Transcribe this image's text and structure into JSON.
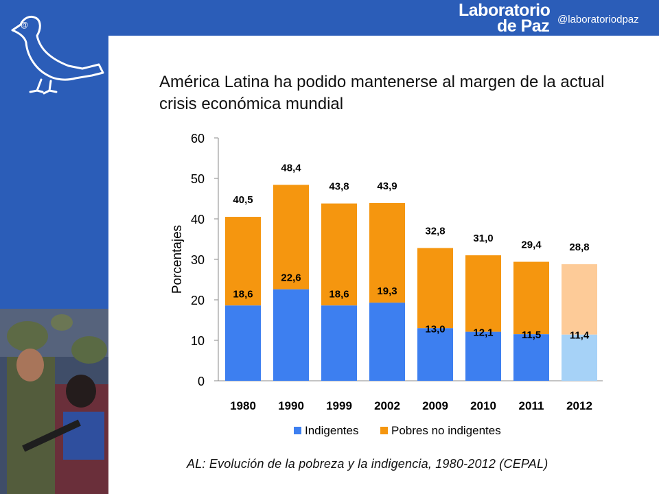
{
  "brand": {
    "line1": "Laboratorio",
    "line2": "de Paz",
    "handle": "@laboratoriodpaz"
  },
  "title": "América Latina ha podido mantenerse al margen de la actual crisis económica mundial",
  "caption": "AL: Evolución de la pobreza y la indigencia, 1980-2012 (CEPAL)",
  "colors": {
    "background": "#2b5db8",
    "indigentes": "#3d7ff0",
    "pobres": "#f5960f",
    "indigentes_light": "#a6d2f7",
    "pobres_light": "#fdcb98"
  },
  "chart_data": {
    "type": "bar",
    "stacked": true,
    "ylabel": "Porcentajes",
    "ylim": [
      0,
      60
    ],
    "yticks": [
      0,
      10,
      20,
      30,
      40,
      50,
      60
    ],
    "categories": [
      "1980",
      "1990",
      "1999",
      "2002",
      "2009",
      "2010",
      "2011",
      "2012"
    ],
    "totals": [
      "40,5",
      "48,4",
      "43,8",
      "43,9",
      "32,8",
      "31,0",
      "29,4",
      "28,8"
    ],
    "total_values": [
      40.5,
      48.4,
      43.8,
      43.9,
      32.8,
      31.0,
      29.4,
      28.8
    ],
    "series": [
      {
        "name": "Indigentes",
        "values": [
          18.6,
          22.6,
          18.6,
          19.3,
          13.0,
          12.1,
          11.5,
          11.4
        ],
        "labels": [
          "18,6",
          "22,6",
          "18,6",
          "19,3",
          "13,0",
          "12,1",
          "11,5",
          "11,4"
        ]
      },
      {
        "name": "Pobres no indigentes",
        "values": [
          21.9,
          25.8,
          25.2,
          24.6,
          19.8,
          18.9,
          17.9,
          17.4
        ]
      }
    ],
    "projected_category": "2012",
    "legend": [
      "Indigentes",
      "Pobres no indigentes"
    ],
    "legend_position": "bottom"
  }
}
